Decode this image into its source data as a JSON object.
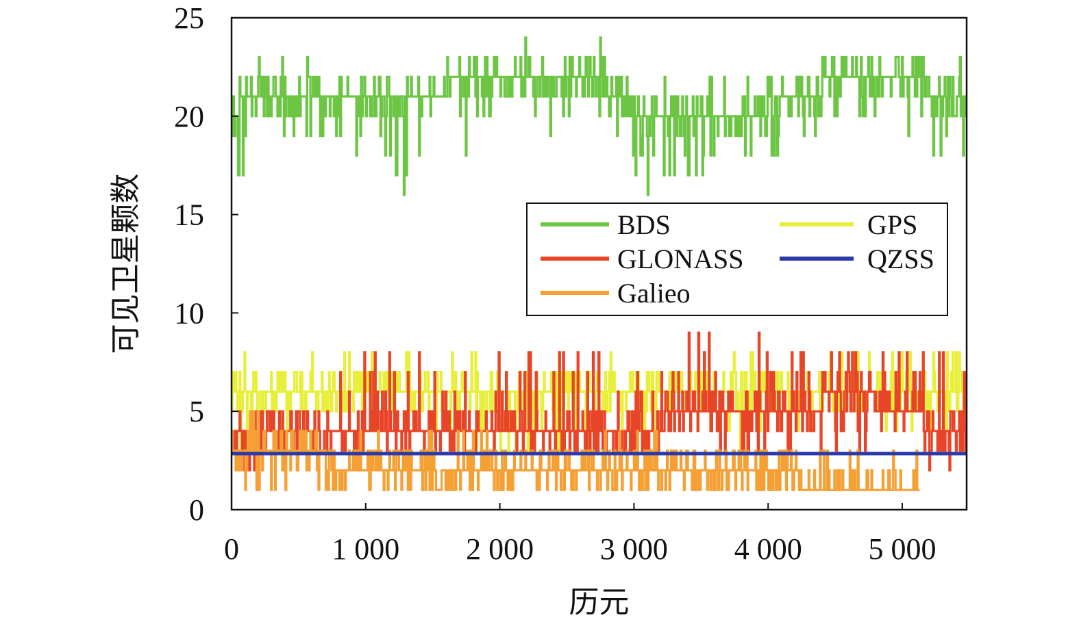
{
  "chart_data": {
    "type": "line",
    "xlabel": "历元",
    "ylabel": "可见卫星颗数",
    "xlim": [
      0,
      5480
    ],
    "ylim": [
      0,
      25
    ],
    "x_ticks": [
      0,
      1000,
      2000,
      3000,
      4000,
      5000
    ],
    "x_tick_labels": [
      "0",
      "1 000",
      "2 000",
      "3 000",
      "4 000",
      "5 000"
    ],
    "y_ticks": [
      0,
      5,
      10,
      15,
      20,
      25
    ],
    "y_tick_labels": [
      "0",
      "5",
      "10",
      "15",
      "20",
      "25"
    ],
    "grid": false,
    "legend_position": "upper-right",
    "series": [
      {
        "name": "BDS",
        "color": "#6cc644",
        "x_range": [
          0,
          5480
        ],
        "x": [
          0,
          100,
          300,
          500,
          700,
          900,
          1100,
          1300,
          1500,
          1700,
          1900,
          2100,
          2300,
          2500,
          2700,
          2900,
          3100,
          3300,
          3500,
          3700,
          3900,
          4100,
          4300,
          4500,
          4700,
          4900,
          5100,
          5300,
          5480
        ],
        "low": [
          16,
          17,
          16,
          19,
          19,
          18,
          19,
          16,
          18,
          18,
          20,
          19,
          19,
          19,
          18,
          18,
          16,
          17,
          17,
          16,
          18,
          18,
          19,
          20,
          20,
          20,
          19,
          18,
          18
        ],
        "high": [
          21,
          23,
          23,
          23,
          22,
          22,
          22,
          22,
          22,
          24,
          24,
          24,
          23,
          23,
          24,
          23,
          21,
          22,
          22,
          22,
          22,
          22,
          23,
          23,
          23,
          23,
          23,
          22,
          23
        ],
        "typical": [
          20,
          21,
          21,
          21,
          21,
          21,
          21,
          21,
          21,
          22,
          22,
          22,
          22,
          22,
          22,
          21,
          20,
          20,
          20,
          20,
          20,
          21,
          21,
          22,
          22,
          22,
          22,
          21,
          21
        ]
      },
      {
        "name": "GPS",
        "color": "#e8ef3a",
        "x_range": [
          0,
          5480
        ],
        "x": [
          0,
          500,
          1000,
          1500,
          2000,
          2500,
          3000,
          3500,
          4000,
          4500,
          5000,
          5480
        ],
        "low": [
          3,
          4,
          4,
          4,
          3,
          3,
          4,
          4,
          3,
          4,
          4,
          4
        ],
        "high": [
          8,
          8,
          8,
          8,
          8,
          7,
          8,
          8,
          8,
          8,
          8,
          8
        ],
        "typical": [
          6,
          6,
          6,
          6,
          6,
          6,
          6,
          6,
          6,
          6,
          6,
          6
        ]
      },
      {
        "name": "GLONASS",
        "color": "#e84427",
        "x_range": [
          0,
          5480
        ],
        "x": [
          0,
          500,
          1000,
          1500,
          2000,
          2500,
          3000,
          3400,
          3800,
          4200,
          4600,
          5000,
          5300,
          5480
        ],
        "low": [
          2,
          3,
          3,
          3,
          3,
          3,
          3,
          3,
          3,
          3,
          3,
          2,
          2,
          3
        ],
        "high": [
          5,
          5,
          8,
          8,
          8,
          8,
          8,
          9,
          9,
          8,
          8,
          8,
          8,
          8
        ],
        "typical": [
          4,
          4,
          4,
          4,
          4,
          4,
          4,
          5,
          5,
          5,
          6,
          5,
          4,
          4
        ]
      },
      {
        "name": "QZSS",
        "color": "#2b3aa8",
        "x_range": [
          0,
          5480
        ],
        "constant": 2.85
      },
      {
        "name": "Galieo",
        "color": "#f5a035",
        "x_range": [
          0,
          5130
        ],
        "x": [
          0,
          500,
          1000,
          1500,
          2000,
          2500,
          3000,
          3500,
          4000,
          4500,
          5000,
          5130
        ],
        "low": [
          1,
          1,
          1,
          1,
          1,
          1,
          1,
          1,
          1,
          1,
          1,
          1
        ],
        "high": [
          5,
          4,
          4,
          4,
          4,
          3,
          4,
          3,
          3,
          3,
          3,
          3
        ],
        "typical": [
          3,
          3,
          2,
          2,
          2,
          2,
          2,
          2,
          2,
          1,
          1,
          1
        ]
      }
    ],
    "legend": {
      "col1": [
        "BDS",
        "GLONASS",
        "Galieo"
      ],
      "col2": [
        "GPS",
        "QZSS"
      ]
    }
  }
}
